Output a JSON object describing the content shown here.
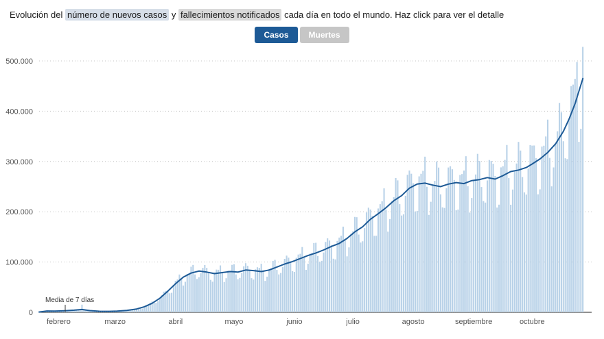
{
  "header": {
    "parts": [
      {
        "text": "Evolución del ",
        "highlight": null
      },
      {
        "text": "número de nuevos casos",
        "highlight": "#d6dee8"
      },
      {
        "text": " y ",
        "highlight": null
      },
      {
        "text": "fallecimientos notificados",
        "highlight": "#d9d9d9"
      },
      {
        "text": " cada día en todo el mundo. Haz click para ver el detalle",
        "highlight": null
      }
    ]
  },
  "toggle": {
    "options": [
      {
        "label": "Casos",
        "active": true
      },
      {
        "label": "Muertes",
        "active": false
      }
    ],
    "active_color": "#1d5a96",
    "inactive_color": "#c6c6c6"
  },
  "chart_data": {
    "type": "bar",
    "title": "Evolución del número de nuevos casos notificados cada día en todo el mundo",
    "active_series": "Casos",
    "colors": {
      "bar": "#b9d2e8",
      "line": "#1d5a96",
      "grid": "#c4c4c4",
      "axis": "#222222",
      "tick_text": "#555555"
    },
    "y_axis": {
      "ylim": [
        0,
        540000
      ],
      "grid": "dotted-horizontal",
      "ticks": [
        {
          "label": "0",
          "value": 0
        },
        {
          "label": "100.000",
          "value": 100000
        },
        {
          "label": "200.000",
          "value": 200000
        },
        {
          "label": "300.000",
          "value": 300000
        },
        {
          "label": "400.000",
          "value": 400000
        },
        {
          "label": "500.000",
          "value": 500000
        }
      ]
    },
    "x_axis": {
      "days_total": 280,
      "months": [
        {
          "label": "febrero",
          "day": 10
        },
        {
          "label": "marzo",
          "day": 39
        },
        {
          "label": "abril",
          "day": 70
        },
        {
          "label": "mayo",
          "day": 100
        },
        {
          "label": "junio",
          "day": 131
        },
        {
          "label": "julio",
          "day": 161
        },
        {
          "label": "agosto",
          "day": 192
        },
        {
          "label": "septiembre",
          "day": 223
        },
        {
          "label": "octubre",
          "day": 253
        }
      ]
    },
    "series": [
      {
        "name": "Nuevos casos diarios",
        "type": "bar",
        "color": "#b9d2e8",
        "weekly_pattern": [
          1.06,
          1.1,
          1.12,
          0.98,
          0.82,
          0.86,
          1.03
        ],
        "overrides": [
          {
            "day": 22,
            "value": 15200
          },
          {
            "day": 276,
            "value": 498000
          },
          {
            "day": 279,
            "value": 528000
          }
        ]
      },
      {
        "name": "Media de 7 días",
        "type": "line",
        "color": "#1d5a96",
        "points": [
          [
            0,
            600
          ],
          [
            4,
            2600
          ],
          [
            8,
            2400
          ],
          [
            13,
            3200
          ],
          [
            18,
            4200
          ],
          [
            22,
            5600
          ],
          [
            26,
            3400
          ],
          [
            31,
            2000
          ],
          [
            36,
            1900
          ],
          [
            40,
            2400
          ],
          [
            45,
            3800
          ],
          [
            50,
            6500
          ],
          [
            54,
            11000
          ],
          [
            58,
            18000
          ],
          [
            62,
            28000
          ],
          [
            66,
            42000
          ],
          [
            70,
            57000
          ],
          [
            74,
            70000
          ],
          [
            78,
            78000
          ],
          [
            82,
            82000
          ],
          [
            86,
            80000
          ],
          [
            90,
            77000
          ],
          [
            94,
            79000
          ],
          [
            98,
            81000
          ],
          [
            102,
            80000
          ],
          [
            106,
            84000
          ],
          [
            110,
            83000
          ],
          [
            114,
            81000
          ],
          [
            118,
            84000
          ],
          [
            122,
            90000
          ],
          [
            126,
            96000
          ],
          [
            130,
            101000
          ],
          [
            134,
            107000
          ],
          [
            138,
            113000
          ],
          [
            142,
            118000
          ],
          [
            146,
            124000
          ],
          [
            150,
            131000
          ],
          [
            154,
            137000
          ],
          [
            158,
            147000
          ],
          [
            162,
            160000
          ],
          [
            166,
            170000
          ],
          [
            170,
            185000
          ],
          [
            174,
            196000
          ],
          [
            178,
            208000
          ],
          [
            182,
            222000
          ],
          [
            186,
            232000
          ],
          [
            190,
            247000
          ],
          [
            194,
            255000
          ],
          [
            198,
            257000
          ],
          [
            202,
            253000
          ],
          [
            206,
            250000
          ],
          [
            210,
            255000
          ],
          [
            214,
            258000
          ],
          [
            218,
            256000
          ],
          [
            222,
            262000
          ],
          [
            226,
            264000
          ],
          [
            230,
            268000
          ],
          [
            234,
            265000
          ],
          [
            238,
            272000
          ],
          [
            242,
            280000
          ],
          [
            246,
            283000
          ],
          [
            250,
            288000
          ],
          [
            253,
            295000
          ],
          [
            257,
            305000
          ],
          [
            261,
            318000
          ],
          [
            265,
            335000
          ],
          [
            269,
            360000
          ],
          [
            272,
            385000
          ],
          [
            275,
            415000
          ],
          [
            277,
            440000
          ],
          [
            279,
            465000
          ]
        ]
      }
    ],
    "annotation": {
      "label": "Media de 7 días"
    }
  }
}
